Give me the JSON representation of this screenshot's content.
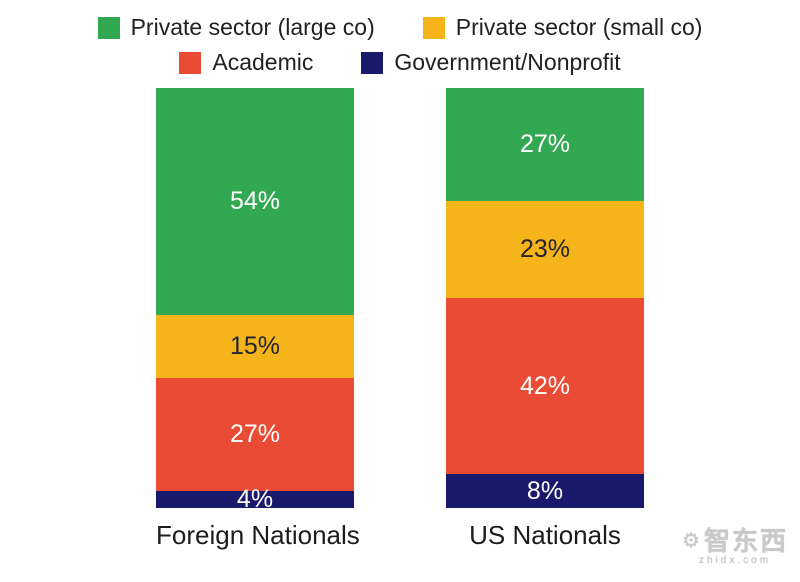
{
  "chart_data": {
    "type": "bar",
    "stacked": true,
    "title": "",
    "categories": [
      "Foreign Nationals",
      "US Nationals"
    ],
    "series": [
      {
        "name": "Private sector (large co)",
        "color": "#33A853",
        "label_color": "#FFFFFF",
        "values": [
          54,
          27
        ]
      },
      {
        "name": "Private sector (small co)",
        "color": "#F4B41A",
        "label_color": "#22242E",
        "values": [
          15,
          23
        ]
      },
      {
        "name": "Academic",
        "color": "#E94B35",
        "label_color": "#FFFFFF",
        "values": [
          27,
          42
        ]
      },
      {
        "name": "Government/Nonprofit",
        "color": "#1A1A6C",
        "label_color": "#FFFFFF",
        "values": [
          4,
          8
        ]
      }
    ],
    "value_suffix": "%",
    "ylim": [
      0,
      100
    ],
    "grid": false,
    "legend_position": "top",
    "stack_order_top_to_bottom": [
      "Private sector (large co)",
      "Private sector (small co)",
      "Academic",
      "Government/Nonprofit"
    ]
  },
  "watermark": {
    "text": "智东西",
    "subtext": "zhidx.com"
  }
}
